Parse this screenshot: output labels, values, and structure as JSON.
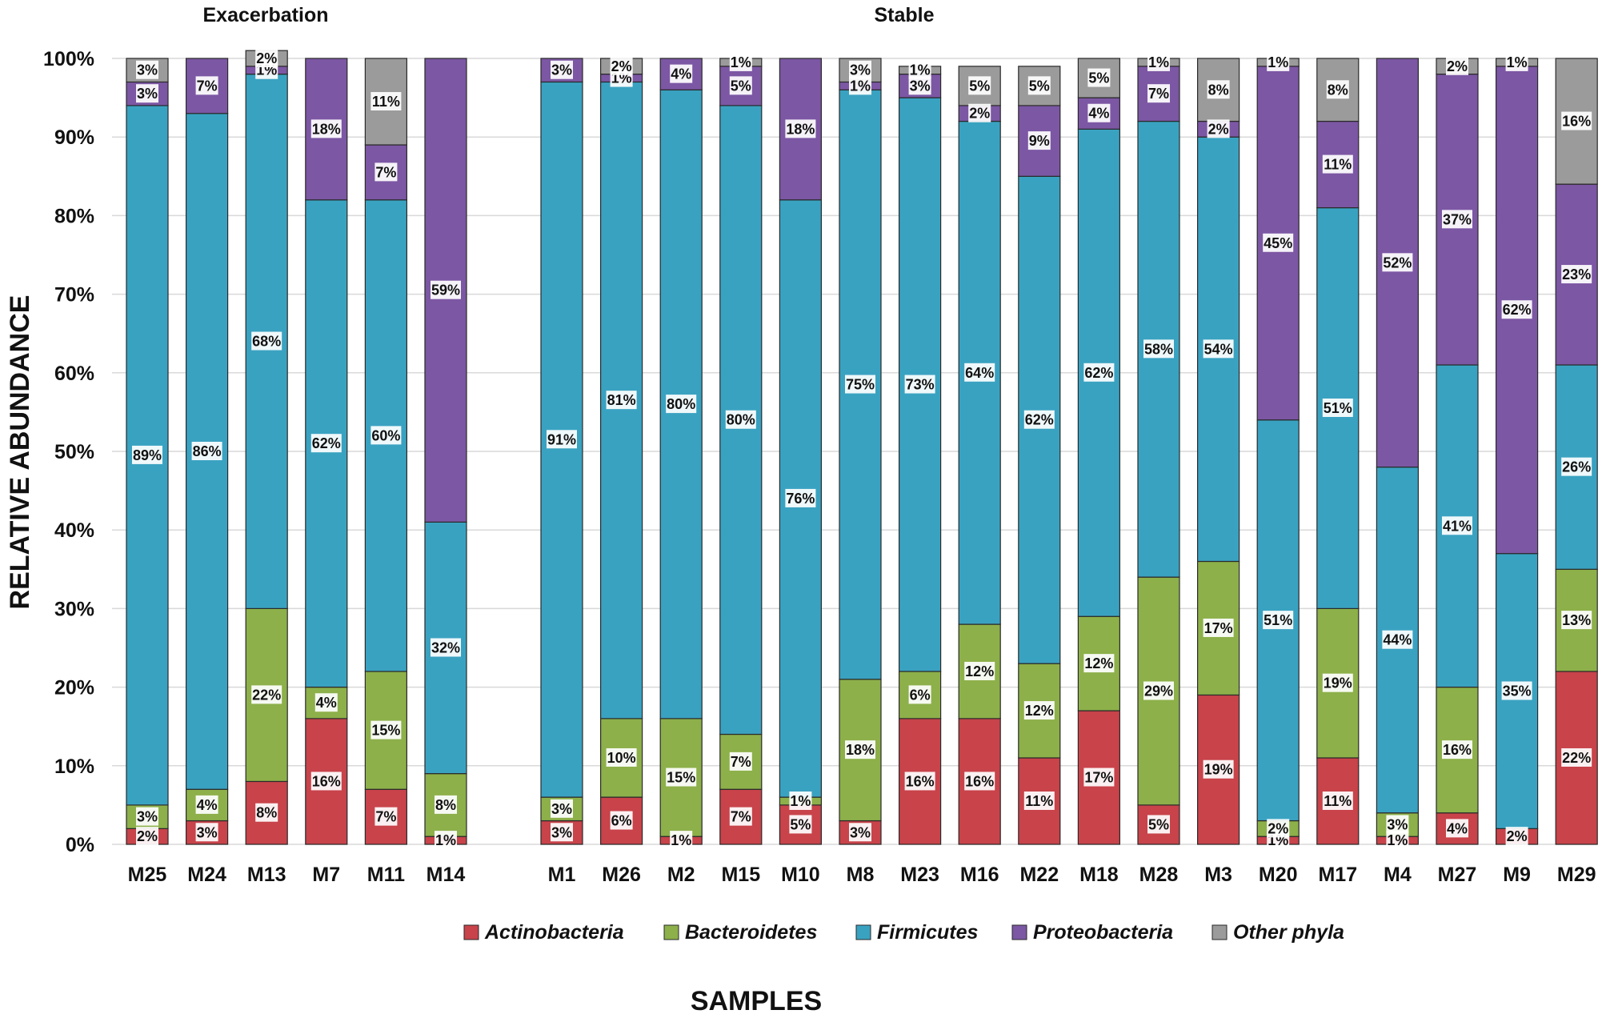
{
  "chart_data": {
    "type": "bar",
    "stacked": true,
    "percent": true,
    "ylabel": "RELATIVE ABUNDANCE",
    "xlabel": "SAMPLES",
    "ylim": [
      0,
      100
    ],
    "yticks": [
      "0%",
      "10%",
      "20%",
      "30%",
      "40%",
      "50%",
      "60%",
      "70%",
      "80%",
      "90%",
      "100%"
    ],
    "grid": true,
    "legend_position": "bottom",
    "groups": [
      {
        "name": "Exacerbation",
        "categories": [
          "M25",
          "M24",
          "M13",
          "M7",
          "M11",
          "M14"
        ]
      },
      {
        "name": "Stable",
        "categories": [
          "M1",
          "M26",
          "M2",
          "M15",
          "M10",
          "M8",
          "M23",
          "M16",
          "M22",
          "M18",
          "M28",
          "M3",
          "M20",
          "M17",
          "M4",
          "M27",
          "M9",
          "M29"
        ]
      }
    ],
    "categories": [
      "M25",
      "M24",
      "M13",
      "M7",
      "M11",
      "M14",
      "M1",
      "M26",
      "M2",
      "M15",
      "M10",
      "M8",
      "M23",
      "M16",
      "M22",
      "M18",
      "M28",
      "M3",
      "M20",
      "M17",
      "M4",
      "M27",
      "M9",
      "M29"
    ],
    "series": [
      {
        "name": "Actinobacteria",
        "color": "#c8434a",
        "values": [
          2,
          3,
          8,
          16,
          7,
          1,
          3,
          6,
          1,
          7,
          5,
          3,
          16,
          16,
          11,
          17,
          5,
          19,
          1,
          11,
          1,
          4,
          2,
          22
        ],
        "labels": [
          "2%",
          "3%",
          "8%",
          "16%",
          "7%",
          "1%",
          "3%",
          "6%",
          "1%",
          "7%",
          "5%",
          "3%",
          "16%",
          "16%",
          "11%",
          "17%",
          "5%",
          "19%",
          "1%",
          "11%",
          "1%",
          "4%",
          "2%",
          "22%"
        ]
      },
      {
        "name": "Bacteroidetes",
        "color": "#8db04a",
        "values": [
          3,
          4,
          22,
          4,
          15,
          8,
          3,
          10,
          15,
          7,
          1,
          18,
          6,
          12,
          12,
          12,
          29,
          17,
          2,
          19,
          3,
          16,
          0,
          13
        ],
        "labels": [
          "3%",
          "4%",
          "22%",
          "4%",
          "15%",
          "8%",
          "3%",
          "10%",
          "15%",
          "7%",
          "1%",
          "18%",
          "6%",
          "12%",
          "12%",
          "12%",
          "29%",
          "17%",
          "2%",
          "19%",
          "3%",
          "16%",
          "",
          "13%"
        ]
      },
      {
        "name": "Firmicutes",
        "color": "#3aa2c1",
        "values": [
          89,
          86,
          68,
          62,
          60,
          32,
          91,
          81,
          80,
          80,
          76,
          75,
          73,
          64,
          62,
          62,
          58,
          54,
          51,
          51,
          44,
          41,
          35,
          26
        ],
        "labels": [
          "89%",
          "86%",
          "68%",
          "62%",
          "60%",
          "32%",
          "91%",
          "81%",
          "80%",
          "80%",
          "76%",
          "75%",
          "73%",
          "64%",
          "62%",
          "62%",
          "58%",
          "54%",
          "51%",
          "51%",
          "44%",
          "41%",
          "35%",
          "26%"
        ]
      },
      {
        "name": "Proteobacteria",
        "color": "#7c57a4",
        "values": [
          3,
          7,
          1,
          18,
          7,
          59,
          3,
          1,
          4,
          5,
          18,
          1,
          3,
          2,
          9,
          4,
          7,
          2,
          45,
          11,
          52,
          37,
          62,
          23
        ],
        "labels": [
          "3%",
          "7%",
          "1%",
          "18%",
          "7%",
          "59%",
          "3%",
          "1%",
          "4%",
          "5%",
          "18%",
          "1%",
          "3%",
          "2%",
          "9%",
          "4%",
          "7%",
          "2%",
          "45%",
          "11%",
          "52%",
          "37%",
          "62%",
          "23%"
        ]
      },
      {
        "name": "Other phyla",
        "color": "#9b9b9b",
        "values": [
          3,
          0,
          2,
          0,
          11,
          0,
          0,
          2,
          0,
          1,
          0,
          3,
          1,
          5,
          5,
          5,
          1,
          8,
          1,
          8,
          0,
          2,
          1,
          16
        ],
        "labels": [
          "3%",
          "",
          "2%",
          "",
          "11%",
          "",
          "",
          "2%",
          "",
          "1%",
          "",
          "3%",
          "1%",
          "5%",
          "5%",
          "5%",
          "1%",
          "8%",
          "1%",
          "8%",
          "",
          "2%",
          "1%",
          "16%"
        ]
      }
    ]
  }
}
